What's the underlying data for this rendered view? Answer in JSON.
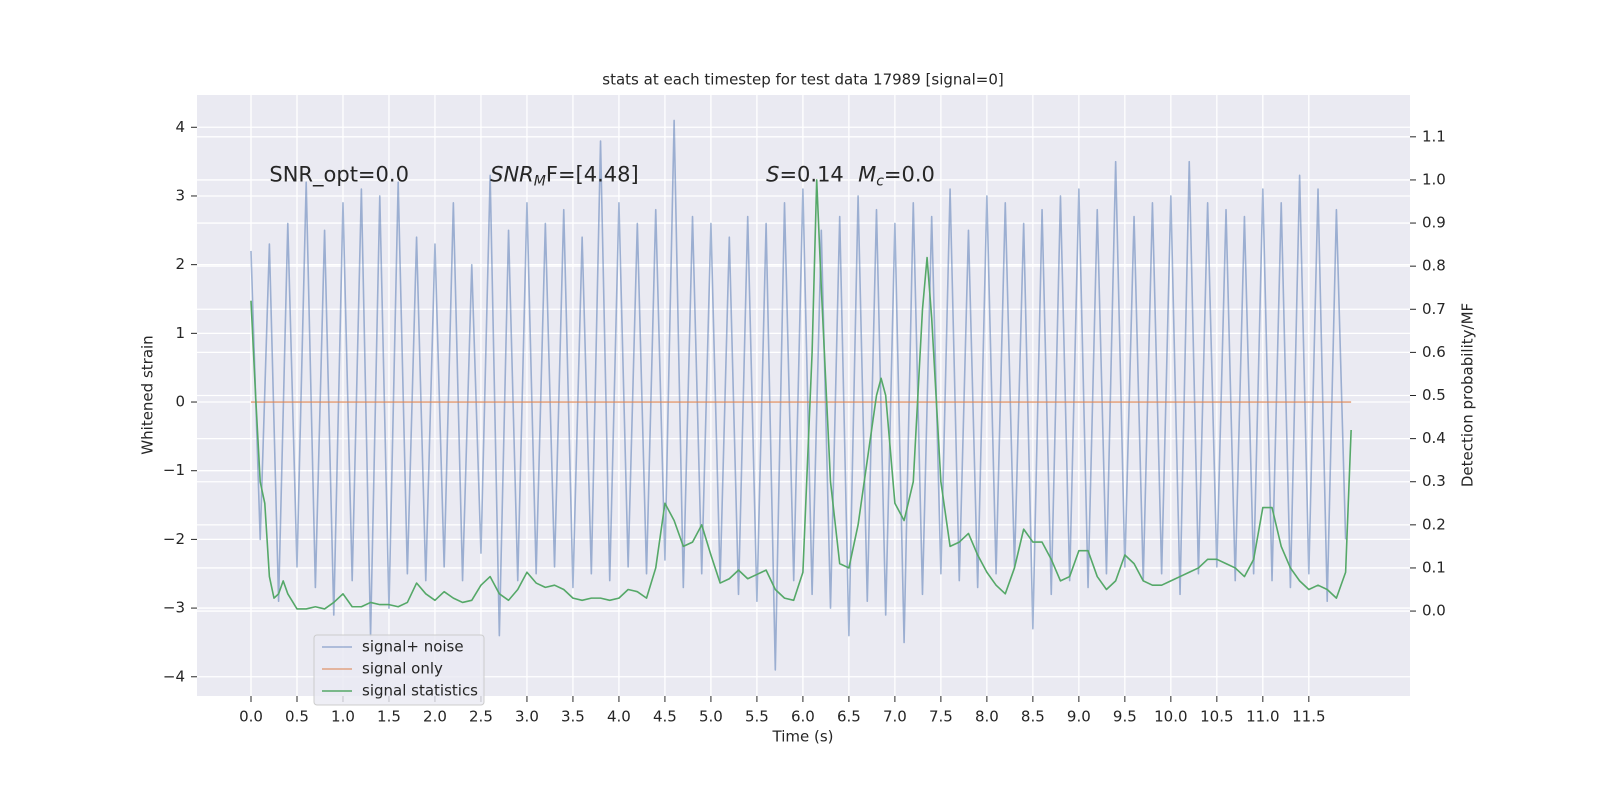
{
  "chart_data": {
    "type": "line",
    "title": "stats at each timestep for test data 17989 [signal=0]",
    "xlabel": "Time (s)",
    "ylabel": "Whitened strain",
    "y2label": "Detection probability/MF",
    "xlim": [
      -0.587,
      12.6
    ],
    "ylim": [
      -4.28,
      4.47
    ],
    "y2lim": [
      -0.197,
      1.197
    ],
    "xticks": [
      {
        "value": 0,
        "label": "0.0"
      },
      {
        "value": 0.5,
        "label": "0.5"
      },
      {
        "value": 1,
        "label": "1.0"
      },
      {
        "value": 1.5,
        "label": "1.5"
      },
      {
        "value": 2,
        "label": "2.0"
      },
      {
        "value": 2.5,
        "label": "2.5"
      },
      {
        "value": 3,
        "label": "3.0"
      },
      {
        "value": 3.5,
        "label": "3.5"
      },
      {
        "value": 4,
        "label": "4.0"
      },
      {
        "value": 4.5,
        "label": "4.5"
      },
      {
        "value": 5,
        "label": "5.0"
      },
      {
        "value": 5.5,
        "label": "5.5"
      },
      {
        "value": 6,
        "label": "6.0"
      },
      {
        "value": 6.5,
        "label": "6.5"
      },
      {
        "value": 7,
        "label": "7.0"
      },
      {
        "value": 7.5,
        "label": "7.5"
      },
      {
        "value": 8,
        "label": "8.0"
      },
      {
        "value": 8.5,
        "label": "8.5"
      },
      {
        "value": 9,
        "label": "9.0"
      },
      {
        "value": 9.5,
        "label": "9.5"
      },
      {
        "value": 10,
        "label": "10.0"
      },
      {
        "value": 10.5,
        "label": "10.5"
      },
      {
        "value": 11,
        "label": "11.0"
      },
      {
        "value": 11.5,
        "label": "11.5"
      }
    ],
    "yticks": [
      {
        "value": -4,
        "label": "−4"
      },
      {
        "value": -3,
        "label": "−3"
      },
      {
        "value": -2,
        "label": "−2"
      },
      {
        "value": -1,
        "label": "−1"
      },
      0,
      1,
      2,
      3,
      4
    ],
    "y2ticks": [
      {
        "value": 0,
        "label": "0.0"
      },
      {
        "value": 0.1,
        "label": "0.1"
      },
      {
        "value": 0.2,
        "label": "0.2"
      },
      {
        "value": 0.3,
        "label": "0.3"
      },
      {
        "value": 0.4,
        "label": "0.4"
      },
      {
        "value": 0.5,
        "label": "0.5"
      },
      {
        "value": 0.6,
        "label": "0.6"
      },
      {
        "value": 0.7,
        "label": "0.7"
      },
      {
        "value": 0.8,
        "label": "0.8"
      },
      {
        "value": 0.9,
        "label": "0.9"
      },
      {
        "value": 1.0,
        "label": "1.0"
      },
      {
        "value": 1.1,
        "label": "1.1"
      }
    ],
    "grid": true,
    "legend": "lower left",
    "annotations": [
      {
        "base": "SNR_opt=0.0",
        "x": 0.2,
        "y": 3.3
      },
      {
        "base": "SNR",
        "sub": "M",
        "rest": "F=[4.48]",
        "italic": true,
        "x": 2.6,
        "y": 3.3
      },
      {
        "base": "S",
        "rest": "=0.14",
        "italic": true,
        "x": 5.6,
        "y": 3.3
      },
      {
        "base": "M",
        "sub": "c",
        "rest": "=0.0",
        "italic": true,
        "x": 6.6,
        "y": 3.3
      }
    ],
    "series": [
      {
        "name": "signal+ noise",
        "color": "#4c72b0",
        "opacity": 0.5,
        "x": [
          0,
          0.1,
          0.2,
          0.3,
          0.4,
          0.5,
          0.6,
          0.7,
          0.8,
          0.9,
          1,
          1.1,
          1.2,
          1.3,
          1.4,
          1.5,
          1.6,
          1.7,
          1.8,
          1.9,
          2,
          2.1,
          2.2,
          2.3,
          2.4,
          2.5,
          2.6,
          2.7,
          2.8,
          2.9,
          3,
          3.1,
          3.2,
          3.3,
          3.4,
          3.5,
          3.6,
          3.7,
          3.8,
          3.9,
          4,
          4.1,
          4.2,
          4.3,
          4.4,
          4.5,
          4.6,
          4.7,
          4.8,
          4.9,
          5,
          5.1,
          5.2,
          5.3,
          5.4,
          5.5,
          5.6,
          5.7,
          5.8,
          5.9,
          6,
          6.1,
          6.2,
          6.3,
          6.4,
          6.5,
          6.6,
          6.7,
          6.8,
          6.9,
          7,
          7.1,
          7.2,
          7.3,
          7.4,
          7.5,
          7.6,
          7.7,
          7.8,
          7.9,
          8,
          8.1,
          8.2,
          8.3,
          8.4,
          8.5,
          8.6,
          8.7,
          8.8,
          8.9,
          9,
          9.1,
          9.2,
          9.3,
          9.4,
          9.5,
          9.6,
          9.7,
          9.8,
          9.9,
          10,
          10.1,
          10.2,
          10.3,
          10.4,
          10.5,
          10.6,
          10.7,
          10.8,
          10.9,
          11,
          11.1,
          11.2,
          11.3,
          11.4,
          11.5,
          11.6,
          11.7,
          11.8,
          11.9
        ],
        "values": [
          2.2,
          -2.0,
          2.3,
          -2.9,
          2.6,
          -2.4,
          3.2,
          -2.7,
          2.5,
          -3.1,
          2.9,
          -2.6,
          3.1,
          -3.4,
          3.0,
          -3.0,
          3.2,
          -2.5,
          2.4,
          -2.6,
          2.3,
          -2.4,
          2.9,
          -2.6,
          2.0,
          -2.2,
          3.3,
          -3.4,
          2.5,
          -2.6,
          2.9,
          -2.5,
          2.6,
          -2.4,
          2.8,
          -2.7,
          2.4,
          -2.5,
          3.8,
          -2.6,
          2.9,
          -2.4,
          2.6,
          -2.5,
          2.8,
          -2.3,
          4.1,
          -2.7,
          2.7,
          -2.5,
          2.6,
          -2.6,
          2.4,
          -2.8,
          2.7,
          -2.9,
          2.6,
          -3.9,
          2.9,
          -2.6,
          3.1,
          -2.8,
          2.5,
          -3.0,
          2.7,
          -3.4,
          3.0,
          -2.9,
          2.8,
          -3.1,
          2.6,
          -3.5,
          2.9,
          -2.8,
          2.7,
          -2.5,
          3.1,
          -2.6,
          2.5,
          -2.7,
          3.0,
          -2.5,
          2.9,
          -2.4,
          2.6,
          -3.3,
          2.8,
          -2.8,
          3.0,
          -2.6,
          3.1,
          -2.7,
          2.8,
          -2.5,
          3.5,
          -2.4,
          2.7,
          -2.6,
          2.9,
          -2.5,
          3.0,
          -2.8,
          3.5,
          -2.5,
          2.9,
          -2.4,
          2.8,
          -2.6,
          2.7,
          -2.5,
          3.1,
          -2.6,
          2.9,
          -2.7,
          3.3,
          -2.5,
          3.1,
          -2.9,
          2.8,
          -2.0
        ]
      },
      {
        "name": "signal only",
        "color": "#dd8452",
        "opacity": 0.7,
        "x": [
          0,
          11.96
        ],
        "values": [
          0,
          0
        ]
      },
      {
        "name": "signal statistics",
        "color": "#55a868",
        "opacity": 1,
        "axis": "y2",
        "x": [
          0,
          0.05,
          0.1,
          0.15,
          0.2,
          0.25,
          0.3,
          0.35,
          0.4,
          0.5,
          0.6,
          0.7,
          0.8,
          0.9,
          1,
          1.1,
          1.2,
          1.3,
          1.4,
          1.5,
          1.6,
          1.7,
          1.8,
          1.9,
          2,
          2.1,
          2.2,
          2.3,
          2.4,
          2.5,
          2.6,
          2.7,
          2.8,
          2.9,
          3,
          3.1,
          3.2,
          3.3,
          3.4,
          3.5,
          3.6,
          3.7,
          3.8,
          3.9,
          4,
          4.1,
          4.2,
          4.3,
          4.4,
          4.5,
          4.6,
          4.7,
          4.8,
          4.9,
          5,
          5.1,
          5.2,
          5.3,
          5.4,
          5.5,
          5.6,
          5.7,
          5.8,
          5.9,
          6,
          6.1,
          6.15,
          6.2,
          6.3,
          6.4,
          6.5,
          6.6,
          6.7,
          6.8,
          6.85,
          6.9,
          7,
          7.1,
          7.2,
          7.3,
          7.35,
          7.4,
          7.5,
          7.6,
          7.7,
          7.8,
          7.9,
          8,
          8.1,
          8.2,
          8.3,
          8.4,
          8.5,
          8.6,
          8.7,
          8.8,
          8.9,
          9,
          9.1,
          9.2,
          9.3,
          9.4,
          9.5,
          9.6,
          9.7,
          9.8,
          9.9,
          10,
          10.1,
          10.2,
          10.3,
          10.4,
          10.5,
          10.6,
          10.7,
          10.8,
          10.9,
          11,
          11.1,
          11.2,
          11.3,
          11.4,
          11.5,
          11.6,
          11.7,
          11.8,
          11.9,
          11.96
        ],
        "values": [
          0.72,
          0.5,
          0.3,
          0.25,
          0.08,
          0.03,
          0.04,
          0.07,
          0.04,
          0.005,
          0.005,
          0.01,
          0.005,
          0.02,
          0.04,
          0.01,
          0.01,
          0.02,
          0.015,
          0.015,
          0.01,
          0.02,
          0.065,
          0.04,
          0.025,
          0.045,
          0.03,
          0.02,
          0.025,
          0.06,
          0.08,
          0.04,
          0.025,
          0.05,
          0.09,
          0.065,
          0.055,
          0.06,
          0.05,
          0.03,
          0.025,
          0.03,
          0.03,
          0.025,
          0.03,
          0.05,
          0.045,
          0.03,
          0.1,
          0.25,
          0.21,
          0.15,
          0.16,
          0.2,
          0.13,
          0.065,
          0.075,
          0.095,
          0.075,
          0.085,
          0.095,
          0.05,
          0.03,
          0.025,
          0.09,
          0.6,
          1.0,
          0.75,
          0.3,
          0.11,
          0.1,
          0.2,
          0.35,
          0.5,
          0.54,
          0.5,
          0.25,
          0.21,
          0.3,
          0.7,
          0.82,
          0.68,
          0.3,
          0.15,
          0.16,
          0.18,
          0.13,
          0.09,
          0.06,
          0.04,
          0.1,
          0.19,
          0.16,
          0.16,
          0.12,
          0.07,
          0.08,
          0.14,
          0.14,
          0.08,
          0.05,
          0.07,
          0.13,
          0.11,
          0.07,
          0.06,
          0.06,
          0.07,
          0.08,
          0.09,
          0.1,
          0.12,
          0.12,
          0.11,
          0.1,
          0.08,
          0.12,
          0.24,
          0.24,
          0.15,
          0.1,
          0.07,
          0.05,
          0.06,
          0.05,
          0.03,
          0.09,
          0.42
        ]
      }
    ]
  }
}
